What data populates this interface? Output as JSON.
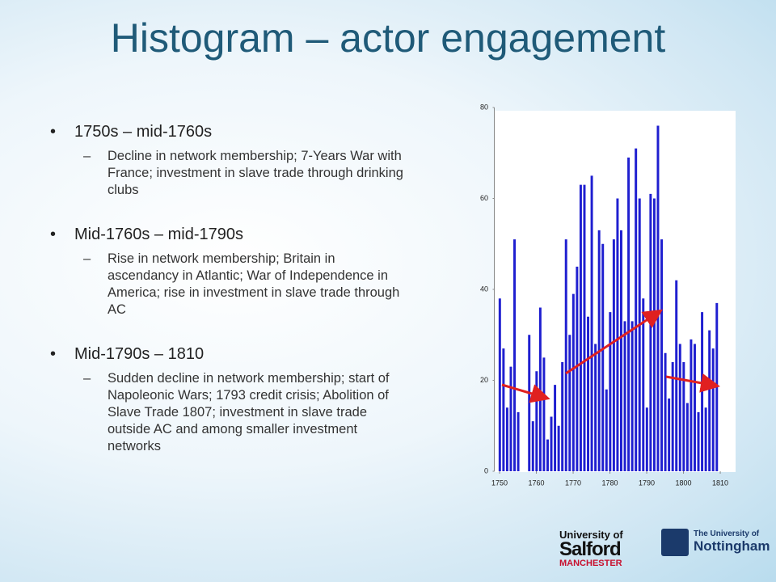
{
  "title": "Histogram – actor engagement",
  "bullets": [
    {
      "text": "1750s – mid-1760s",
      "sub": "Decline in network membership; 7-Years War with France; investment in slave trade through drinking clubs"
    },
    {
      "text": "Mid-1760s – mid-1790s",
      "sub": "Rise in network membership; Britain in ascendancy in Atlantic; War of Independence in America; rise in investment in slave trade through AC"
    },
    {
      "text": "Mid-1790s – 1810",
      "sub": "Sudden decline in network membership; start of Napoleonic Wars; 1793 credit crisis; Abolition of Slave Trade 1807; investment in slave trade outside AC and among smaller investment networks"
    }
  ],
  "logos": {
    "salford": [
      "University of",
      "Salford",
      "MANCHESTER"
    ],
    "nottingham": [
      "The University of",
      "Nottingham"
    ]
  },
  "chart_data": {
    "type": "histogram",
    "color": "#1f1fd0",
    "bins": [
      1750,
      1751,
      1752,
      1753,
      1754,
      1755,
      1756,
      1757,
      1758,
      1759,
      1760,
      1761,
      1762,
      1763,
      1764,
      1765,
      1766,
      1767,
      1768,
      1769,
      1770,
      1771,
      1772,
      1773,
      1774,
      1775,
      1776,
      1777,
      1778,
      1779,
      1780,
      1781,
      1782,
      1783,
      1784,
      1785,
      1786,
      1787,
      1788,
      1789,
      1790,
      1791,
      1792,
      1793,
      1794,
      1795,
      1796,
      1797,
      1798,
      1799,
      1800,
      1801,
      1802,
      1803,
      1804,
      1805,
      1806,
      1807,
      1808,
      1809,
      1810
    ],
    "values": [
      38,
      27,
      14,
      23,
      51,
      13,
      0,
      0,
      30,
      11,
      22,
      36,
      25,
      7,
      12,
      19,
      10,
      24,
      51,
      30,
      39,
      45,
      63,
      63,
      34,
      65,
      28,
      53,
      50,
      18,
      35,
      51,
      60,
      53,
      33,
      69,
      33,
      71,
      60,
      38,
      14,
      61,
      60,
      76,
      51,
      26,
      16,
      24,
      42,
      28,
      24,
      15,
      29,
      28,
      13,
      35,
      14,
      31,
      27,
      37
    ],
    "xlim": [
      1749,
      1811
    ],
    "xticks": [
      1750,
      1760,
      1770,
      1780,
      1790,
      1800,
      1810
    ],
    "ylim": [
      0,
      80
    ],
    "yticks": [
      0,
      20,
      40,
      60,
      80
    ]
  }
}
